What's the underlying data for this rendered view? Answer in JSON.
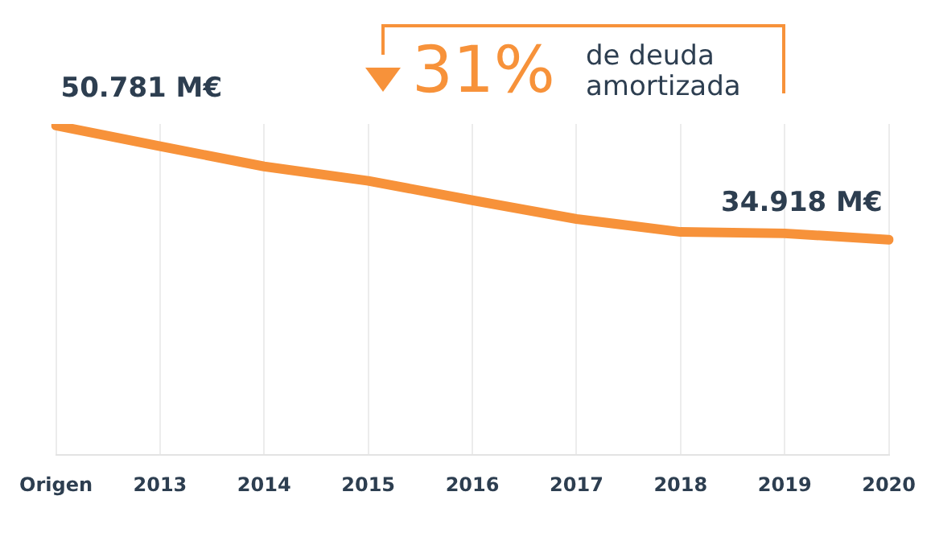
{
  "chart_data": {
    "type": "line",
    "ylim": [
      5,
      51
    ],
    "tick_labels": "x",
    "categories": [
      "Origen",
      "2013",
      "2014",
      "2015",
      "2016",
      "2017",
      "2018",
      "2019",
      "2020"
    ],
    "series": [
      {
        "color": "#f7923a",
        "values": [
          50.781,
          47.9,
          45.1,
          43.1,
          40.4,
          37.8,
          36.0,
          35.8,
          34.918
        ],
        "value_labels": [
          "50.781 M€",
          null,
          null,
          null,
          null,
          null,
          null,
          null,
          "34.918 M€"
        ]
      }
    ],
    "annotations": [
      "31%",
      "de deuda amortizada"
    ],
    "grid": "x",
    "legend": false,
    "marker": "none",
    "line_style": "solid"
  }
}
